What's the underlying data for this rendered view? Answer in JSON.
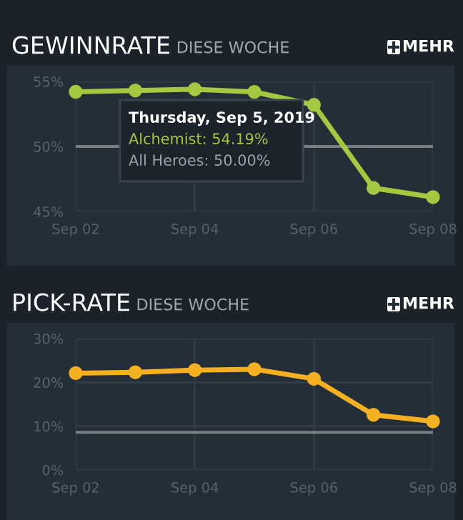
{
  "chart_data": [
    {
      "type": "line",
      "title": "GEWINNRATE",
      "subtitle": "DIESE WOCHE",
      "x": [
        "2019-09-02",
        "2019-09-03",
        "2019-09-04",
        "2019-09-05",
        "2019-09-06",
        "2019-09-07",
        "2019-09-08"
      ],
      "series": [
        {
          "color": "#a3c940",
          "values": [
            54.2,
            54.3,
            54.4,
            54.19,
            53.2,
            46.8,
            46.1
          ]
        }
      ],
      "xlim": [
        "2019-09-02",
        "2019-09-08"
      ],
      "xticks": [
        {
          "value": "2019-09-02",
          "label": "Sep 02"
        },
        {
          "value": "2019-09-04",
          "label": "Sep 04"
        },
        {
          "value": "2019-09-06",
          "label": "Sep 06"
        },
        {
          "value": "2019-09-08",
          "label": "Sep 08"
        }
      ],
      "ylim": [
        45,
        55
      ],
      "yticks": [
        {
          "value": 45,
          "label": "45%"
        },
        {
          "value": 50,
          "label": "50%"
        },
        {
          "value": 55,
          "label": "55%"
        }
      ],
      "ref_lines": [
        {
          "axis": "y",
          "value": 50,
          "color": "#7a7f84"
        }
      ],
      "grid": true,
      "marker": "circle",
      "line_style": "solid",
      "annotations": [
        "MEHR",
        "Thursday, Sep 5, 2019",
        "Alchemist: 54.19%",
        "All Heroes: 50.00%"
      ]
    },
    {
      "type": "line",
      "title": "PICK-RATE",
      "subtitle": "DIESE WOCHE",
      "x": [
        "2019-09-02",
        "2019-09-03",
        "2019-09-04",
        "2019-09-05",
        "2019-09-06",
        "2019-09-07",
        "2019-09-08"
      ],
      "series": [
        {
          "color": "#f5b021",
          "values": [
            22.1,
            22.3,
            22.8,
            23.0,
            20.8,
            12.6,
            11.1
          ]
        }
      ],
      "xlim": [
        "2019-09-02",
        "2019-09-08"
      ],
      "xticks": [
        {
          "value": "2019-09-02",
          "label": "Sep 02"
        },
        {
          "value": "2019-09-04",
          "label": "Sep 04"
        },
        {
          "value": "2019-09-06",
          "label": "Sep 06"
        },
        {
          "value": "2019-09-08",
          "label": "Sep 08"
        }
      ],
      "ylim": [
        0,
        30
      ],
      "yticks": [
        {
          "value": 0,
          "label": "0%"
        },
        {
          "value": 10,
          "label": "10%"
        },
        {
          "value": 20,
          "label": "20%"
        },
        {
          "value": 30,
          "label": "30%"
        }
      ],
      "ref_lines": [
        {
          "axis": "y",
          "value": 8.6,
          "color": "#7a7f84"
        }
      ],
      "grid": true,
      "marker": "circle",
      "line_style": "solid",
      "annotations": [
        "MEHR"
      ]
    }
  ]
}
